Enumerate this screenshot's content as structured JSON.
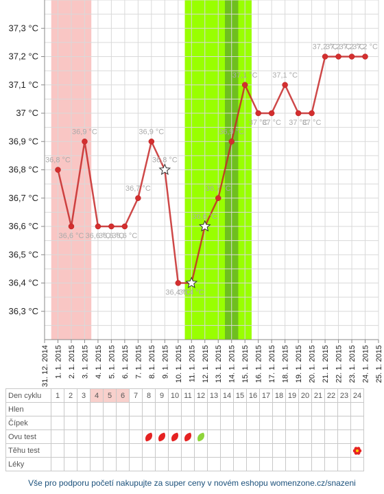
{
  "chart_data": {
    "type": "line",
    "y_tick_labels": [
      "36,3 °C",
      "36,4 °C",
      "36,5 °C",
      "36,6 °C",
      "36,7 °C",
      "36,8 °C",
      "36,9 °C",
      "37 °C",
      "37,1 °C",
      "37,2 °C",
      "37,3 °C"
    ],
    "y_ticks": [
      36.3,
      36.4,
      36.5,
      36.6,
      36.7,
      36.8,
      36.9,
      37.0,
      37.1,
      37.2,
      37.3
    ],
    "ylim": [
      36.2,
      37.4
    ],
    "x_tick_labels": [
      "31. 12. 2014",
      "1. 1. 2015",
      "2. 1. 2015",
      "3. 1. 2015",
      "4. 1. 2015",
      "5. 1. 2015",
      "6. 1. 2015",
      "7. 1. 2015",
      "8. 1. 2015",
      "9. 1. 2015",
      "10. 1. 2015",
      "11. 1. 2015",
      "12. 1. 2015",
      "13. 1. 2015",
      "14. 1. 2015",
      "15. 1. 2015",
      "16. 1. 2015",
      "17. 1. 2015",
      "18. 1. 2015",
      "19. 1. 2015",
      "20. 1. 2015",
      "21. 1. 2015",
      "22. 1. 2015",
      "23. 1. 2015",
      "24. 1. 2015",
      "25. 1. 2015"
    ],
    "series": [
      {
        "values": [
          36.8,
          36.6,
          36.9,
          36.6,
          36.6,
          36.6,
          36.7,
          36.9,
          36.8,
          36.4,
          36.4,
          36.6,
          36.7,
          36.9,
          37.1,
          37.0,
          37.0,
          37.1,
          37.0,
          37.0,
          37.2,
          37.2,
          37.2,
          37.2
        ],
        "labels": [
          "36,8 °C",
          "36,6 °C",
          "36,9 °C",
          "36,6 °C",
          "36,6 °C",
          "36,6 °C",
          "36,7 °C",
          "36,9 °C",
          "36,8 °C",
          "36,4 °C",
          "36,4 °C",
          "36,6 °C",
          "36,7 °C",
          "36,9 °C",
          "37,1 °C",
          "37 °C",
          "37 °C",
          "37,1 °C",
          "37 °C",
          "37 °C",
          "37,2 °C",
          "37,2 °C",
          "37,2 °C",
          "37,2 °C"
        ],
        "star_markers": [
          8,
          10,
          11
        ]
      }
    ],
    "menstruation_days": [
      1,
      3
    ],
    "fertile_window_days": [
      11,
      15
    ],
    "peak_fertility_days": [
      14,
      14
    ],
    "grid": true,
    "colors": {
      "line": "#c62828",
      "point": "#d32f2f",
      "menstruation": "#f9c6c4",
      "fertile": "#99ff00",
      "peak": "#6fbf1f",
      "label": "#aaaaaa"
    }
  },
  "table": {
    "rows": [
      "Den cyklu",
      "Hlen",
      "Čípek",
      "Ovu test",
      "Těhu test",
      "Léky"
    ],
    "days": [
      "1",
      "2",
      "3",
      "4",
      "5",
      "6",
      "7",
      "8",
      "9",
      "10",
      "11",
      "12",
      "13",
      "14",
      "15",
      "16",
      "17",
      "18",
      "19",
      "20",
      "21",
      "22",
      "23",
      "24"
    ],
    "highlighted_days": [
      4,
      5,
      6
    ],
    "ovu_test": [
      {
        "day": 8,
        "icon": "red-leaf-icon",
        "color": "#e52222"
      },
      {
        "day": 9,
        "icon": "red-leaf-icon",
        "color": "#e52222"
      },
      {
        "day": 10,
        "icon": "red-leaf-icon",
        "color": "#e52222"
      },
      {
        "day": 11,
        "icon": "red-leaf-icon",
        "color": "#e52222"
      },
      {
        "day": 12,
        "icon": "green-leaf-icon",
        "color": "#8fd43a"
      }
    ],
    "tehu_test": [
      {
        "day": 24,
        "icon": "red-flower-icon",
        "color": "#e52222"
      }
    ]
  },
  "footer": "Vše pro podporu početí nakupujte za super ceny v novém eshopu womenzone.cz/snazeni"
}
